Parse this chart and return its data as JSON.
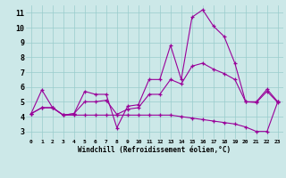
{
  "xlabel": "Windchill (Refroidissement éolien,°C)",
  "bg_color": "#cce8e8",
  "line_color": "#990099",
  "grid_color": "#99cccc",
  "series": [
    [
      4.2,
      5.8,
      4.6,
      4.1,
      4.2,
      5.7,
      5.5,
      5.5,
      3.25,
      4.7,
      4.8,
      6.5,
      6.5,
      8.8,
      6.5,
      10.7,
      11.2,
      10.1,
      9.4,
      7.6,
      5.0,
      5.0,
      5.85,
      5.0
    ],
    [
      4.2,
      4.6,
      4.6,
      4.1,
      4.2,
      5.0,
      5.0,
      5.1,
      4.15,
      4.5,
      4.6,
      5.5,
      5.5,
      6.5,
      6.2,
      7.4,
      7.6,
      7.2,
      6.9,
      6.5,
      5.0,
      4.95,
      5.7,
      4.95
    ],
    [
      4.2,
      4.6,
      4.6,
      4.1,
      4.1,
      4.1,
      4.1,
      4.1,
      4.1,
      4.1,
      4.1,
      4.1,
      4.1,
      4.1,
      4.0,
      3.9,
      3.8,
      3.7,
      3.6,
      3.5,
      3.3,
      3.0,
      3.0,
      5.0
    ]
  ],
  "xlim": [
    -0.5,
    23.5
  ],
  "ylim": [
    2.5,
    11.5
  ],
  "yticks": [
    3,
    4,
    5,
    6,
    7,
    8,
    9,
    10,
    11
  ],
  "xticks": [
    0,
    1,
    2,
    3,
    4,
    5,
    6,
    7,
    8,
    9,
    10,
    11,
    12,
    13,
    14,
    15,
    16,
    17,
    18,
    19,
    20,
    21,
    22,
    23
  ],
  "xtick_labels": [
    "0",
    "1",
    "2",
    "3",
    "4",
    "5",
    "6",
    "7",
    "8",
    "9",
    "10",
    "11",
    "12",
    "13",
    "14",
    "15",
    "16",
    "17",
    "18",
    "19",
    "20",
    "21",
    "22",
    "23"
  ]
}
